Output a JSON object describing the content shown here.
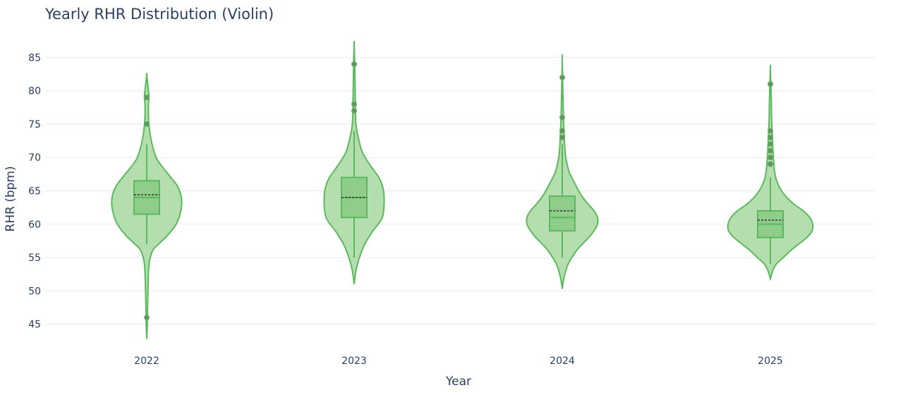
{
  "chart_data": {
    "type": "violin",
    "title": "Yearly RHR Distribution (Violin)",
    "xlabel": "Year",
    "ylabel": "RHR (bpm)",
    "ylim": [
      42,
      88
    ],
    "yticks": [
      45,
      50,
      55,
      60,
      65,
      70,
      75,
      80,
      85
    ],
    "grid": true,
    "fill_color": "#a8d8a0",
    "line_color": "#5cb85c",
    "box_color": "#8fce8a",
    "mean_line_color": "#333333",
    "point_color": "#6b8f6b",
    "categories": [
      "2022",
      "2023",
      "2024",
      "2025"
    ],
    "violins": [
      {
        "category": "2022",
        "box": {
          "q1": 61.5,
          "median": 64,
          "q3": 66.5,
          "mean": 64.4,
          "whisker_low": 57,
          "whisker_high": 72
        },
        "outliers": [
          46,
          75,
          79
        ],
        "range": [
          42.8,
          82.3
        ],
        "profile": [
          [
            42.8,
            0
          ],
          [
            45,
            1
          ],
          [
            50,
            2
          ],
          [
            54,
            4
          ],
          [
            56,
            10
          ],
          [
            57,
            20
          ],
          [
            58,
            32
          ],
          [
            59,
            42
          ],
          [
            60,
            50
          ],
          [
            61,
            55
          ],
          [
            62,
            58
          ],
          [
            63,
            59.5
          ],
          [
            64,
            59
          ],
          [
            65,
            56
          ],
          [
            66,
            50
          ],
          [
            67,
            41
          ],
          [
            68,
            32
          ],
          [
            69,
            23
          ],
          [
            70,
            16
          ],
          [
            72,
            9
          ],
          [
            74,
            5
          ],
          [
            76,
            3
          ],
          [
            78,
            3
          ],
          [
            79,
            4
          ],
          [
            80,
            3
          ],
          [
            82.3,
            0
          ]
        ]
      },
      {
        "category": "2023",
        "box": {
          "q1": 61,
          "median": 64,
          "q3": 67,
          "mean": 64,
          "whisker_low": 55,
          "whisker_high": 74
        },
        "outliers": [
          77,
          78,
          84
        ],
        "range": [
          51,
          87
        ],
        "profile": [
          [
            51,
            0
          ],
          [
            53,
            3
          ],
          [
            55,
            9
          ],
          [
            57,
            18
          ],
          [
            59,
            32
          ],
          [
            60,
            41
          ],
          [
            61,
            48
          ],
          [
            62,
            50
          ],
          [
            63,
            51
          ],
          [
            64,
            51
          ],
          [
            65,
            50
          ],
          [
            66,
            47
          ],
          [
            67,
            42
          ],
          [
            68,
            34
          ],
          [
            69,
            26
          ],
          [
            70,
            19
          ],
          [
            71,
            13
          ],
          [
            73,
            7
          ],
          [
            75,
            3
          ],
          [
            78,
            2
          ],
          [
            81,
            1.5
          ],
          [
            84,
            1
          ],
          [
            87,
            0
          ]
        ]
      },
      {
        "category": "2024",
        "box": {
          "q1": 59,
          "median": 61,
          "q3": 64.2,
          "mean": 62,
          "whisker_low": 55,
          "whisker_high": 72
        },
        "outliers": [
          73,
          74,
          76,
          82
        ],
        "range": [
          50.3,
          84.8
        ],
        "profile": [
          [
            50.3,
            0
          ],
          [
            52,
            3
          ],
          [
            54,
            10
          ],
          [
            56,
            24
          ],
          [
            57,
            34
          ],
          [
            58,
            45
          ],
          [
            59,
            54
          ],
          [
            60,
            60
          ],
          [
            61,
            60
          ],
          [
            62,
            54
          ],
          [
            63,
            44
          ],
          [
            64,
            35
          ],
          [
            65,
            28
          ],
          [
            66,
            22
          ],
          [
            67,
            16
          ],
          [
            68,
            11
          ],
          [
            70,
            6
          ],
          [
            72,
            4
          ],
          [
            74,
            3
          ],
          [
            76,
            2
          ],
          [
            80,
            1
          ],
          [
            84.8,
            0
          ]
        ]
      },
      {
        "category": "2025",
        "box": {
          "q1": 58,
          "median": 60,
          "q3": 62,
          "mean": 60.6,
          "whisker_low": 54,
          "whisker_high": 67
        },
        "outliers": [
          69,
          70,
          71,
          72,
          73,
          74,
          81
        ],
        "range": [
          51.8,
          83.3
        ],
        "profile": [
          [
            51.8,
            0
          ],
          [
            53,
            4
          ],
          [
            54,
            10
          ],
          [
            55,
            22
          ],
          [
            56,
            34
          ],
          [
            57,
            48
          ],
          [
            58,
            62
          ],
          [
            59,
            71
          ],
          [
            60,
            72
          ],
          [
            61,
            67
          ],
          [
            62,
            56
          ],
          [
            63,
            40
          ],
          [
            64,
            28
          ],
          [
            65,
            19
          ],
          [
            66,
            13
          ],
          [
            67,
            9
          ],
          [
            68,
            7
          ],
          [
            70,
            5
          ],
          [
            72,
            4
          ],
          [
            74,
            3
          ],
          [
            76,
            2
          ],
          [
            79,
            1.5
          ],
          [
            83.3,
            0
          ]
        ]
      }
    ]
  }
}
